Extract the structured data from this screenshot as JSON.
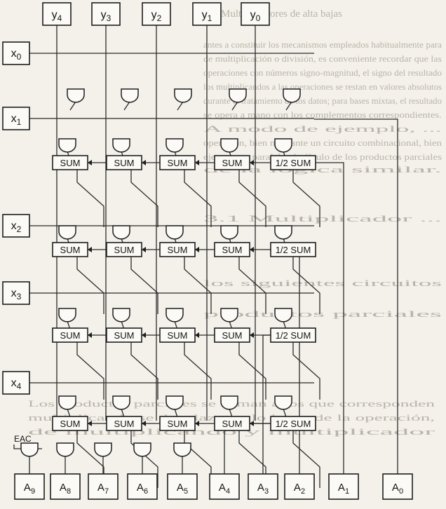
{
  "background_text": {
    "heading": "2. Multiplicadores de alta bajas",
    "lines": [
      "antes a constituir los mecanismos empleados habitualmente para",
      "de multiplicación o división, es conveniente recordar que las",
      "operaciones con números signo-magnitud, el signo del resultado",
      "los multiplicandos a las operaciones se restan en valores absolutos",
      "durante el tratamiento de los datos; para bases mixtas, el resultado",
      "se opera a mano con los complementos correspondientes.",
      "A modo de ejemplo, ...",
      "operación, bien mediante un circuito combinacional, bien",
      "ejecutar en paralelo el cálculo de los productos parciales",
      "de la lógica similar.",
      "3.1 Multiplicador ...",
      "los siguientes circuitos",
      "productos parciales",
      "Los productos parciales se suman a los que corresponden",
      "multiplicando se desplazan a lo largo de la operación,",
      "de multiplicando y multiplicador"
    ]
  },
  "y_inputs": [
    "y4",
    "y3",
    "y2",
    "y1",
    "y0"
  ],
  "x_inputs": [
    "x0",
    "x1",
    "x2",
    "x3",
    "x4"
  ],
  "adder_rows": [
    [
      "SUM",
      "SUM",
      "SUM",
      "SUM",
      "1/2 SUM"
    ],
    [
      "SUM",
      "SUM",
      "SUM",
      "SUM",
      "1/2 SUM"
    ],
    [
      "SUM",
      "SUM",
      "SUM",
      "SUM",
      "1/2 SUM"
    ],
    [
      "SUM",
      "SUM",
      "SUM",
      "SUM",
      "1/2 SUM"
    ]
  ],
  "eac_label": "EAC",
  "outputs": [
    "A9",
    "A8",
    "A7",
    "A6",
    "A5",
    "A4",
    "A3",
    "A2",
    "A1",
    "A0"
  ]
}
